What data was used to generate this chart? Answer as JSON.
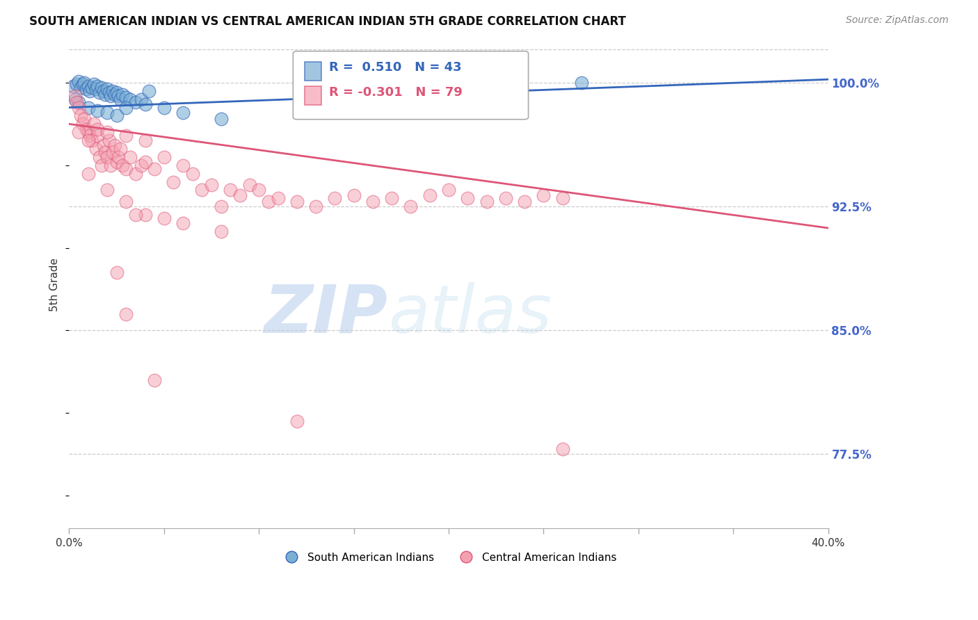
{
  "title": "SOUTH AMERICAN INDIAN VS CENTRAL AMERICAN INDIAN 5TH GRADE CORRELATION CHART",
  "source": "Source: ZipAtlas.com",
  "ylabel": "5th Grade",
  "ylabel_right_ticks": [
    100.0,
    92.5,
    85.0,
    77.5
  ],
  "xlim": [
    0.0,
    40.0
  ],
  "ylim": [
    73.0,
    102.5
  ],
  "legend_blue_label": "South American Indians",
  "legend_pink_label": "Central American Indians",
  "R_blue": 0.51,
  "N_blue": 43,
  "R_pink": -0.301,
  "N_pink": 79,
  "color_blue": "#7BAFD4",
  "color_pink": "#F4A0B0",
  "color_line_blue": "#3366BB",
  "color_line_pink": "#DD5577",
  "color_axis_right": "#4466CC",
  "color_grid": "#CCCCCC",
  "blue_points": [
    [
      0.2,
      99.8
    ],
    [
      0.4,
      99.9
    ],
    [
      0.5,
      100.1
    ],
    [
      0.6,
      99.7
    ],
    [
      0.7,
      99.9
    ],
    [
      0.8,
      100.0
    ],
    [
      0.9,
      99.6
    ],
    [
      1.0,
      99.8
    ],
    [
      1.1,
      99.5
    ],
    [
      1.2,
      99.7
    ],
    [
      1.3,
      99.9
    ],
    [
      1.4,
      99.6
    ],
    [
      1.5,
      99.8
    ],
    [
      1.6,
      99.4
    ],
    [
      1.7,
      99.7
    ],
    [
      1.8,
      99.5
    ],
    [
      1.9,
      99.3
    ],
    [
      2.0,
      99.6
    ],
    [
      2.1,
      99.4
    ],
    [
      2.2,
      99.2
    ],
    [
      2.3,
      99.5
    ],
    [
      2.4,
      99.3
    ],
    [
      2.5,
      99.4
    ],
    [
      2.6,
      99.2
    ],
    [
      2.7,
      99.0
    ],
    [
      2.8,
      99.3
    ],
    [
      3.0,
      99.1
    ],
    [
      3.2,
      99.0
    ],
    [
      3.5,
      98.8
    ],
    [
      3.8,
      99.0
    ],
    [
      4.0,
      98.7
    ],
    [
      4.2,
      99.5
    ],
    [
      5.0,
      98.5
    ],
    [
      0.3,
      99.0
    ],
    [
      0.5,
      98.8
    ],
    [
      1.0,
      98.5
    ],
    [
      1.5,
      98.3
    ],
    [
      2.0,
      98.2
    ],
    [
      2.5,
      98.0
    ],
    [
      3.0,
      98.5
    ],
    [
      6.0,
      98.2
    ],
    [
      8.0,
      97.8
    ],
    [
      27.0,
      100.0
    ]
  ],
  "pink_points": [
    [
      0.3,
      99.2
    ],
    [
      0.4,
      98.8
    ],
    [
      0.5,
      98.5
    ],
    [
      0.6,
      98.0
    ],
    [
      0.7,
      97.5
    ],
    [
      0.8,
      97.8
    ],
    [
      0.9,
      97.2
    ],
    [
      1.0,
      97.0
    ],
    [
      1.1,
      96.8
    ],
    [
      1.2,
      96.5
    ],
    [
      1.3,
      97.5
    ],
    [
      1.4,
      96.0
    ],
    [
      1.5,
      96.8
    ],
    [
      1.6,
      95.5
    ],
    [
      1.7,
      95.0
    ],
    [
      1.8,
      96.2
    ],
    [
      1.9,
      95.8
    ],
    [
      2.0,
      95.5
    ],
    [
      2.1,
      96.5
    ],
    [
      2.2,
      95.0
    ],
    [
      2.3,
      95.8
    ],
    [
      2.4,
      96.2
    ],
    [
      2.5,
      95.2
    ],
    [
      2.6,
      95.5
    ],
    [
      2.7,
      96.0
    ],
    [
      2.8,
      95.0
    ],
    [
      3.0,
      94.8
    ],
    [
      3.2,
      95.5
    ],
    [
      3.5,
      94.5
    ],
    [
      3.8,
      95.0
    ],
    [
      4.0,
      95.2
    ],
    [
      4.5,
      94.8
    ],
    [
      5.0,
      95.5
    ],
    [
      5.5,
      94.0
    ],
    [
      6.0,
      95.0
    ],
    [
      6.5,
      94.5
    ],
    [
      7.0,
      93.5
    ],
    [
      7.5,
      93.8
    ],
    [
      8.0,
      92.5
    ],
    [
      8.5,
      93.5
    ],
    [
      9.0,
      93.2
    ],
    [
      9.5,
      93.8
    ],
    [
      10.0,
      93.5
    ],
    [
      10.5,
      92.8
    ],
    [
      11.0,
      93.0
    ],
    [
      12.0,
      92.8
    ],
    [
      13.0,
      92.5
    ],
    [
      14.0,
      93.0
    ],
    [
      15.0,
      93.2
    ],
    [
      16.0,
      92.8
    ],
    [
      17.0,
      93.0
    ],
    [
      18.0,
      92.5
    ],
    [
      19.0,
      93.2
    ],
    [
      20.0,
      93.5
    ],
    [
      21.0,
      93.0
    ],
    [
      22.0,
      92.8
    ],
    [
      23.0,
      93.0
    ],
    [
      24.0,
      92.8
    ],
    [
      25.0,
      93.2
    ],
    [
      26.0,
      93.0
    ],
    [
      0.5,
      97.0
    ],
    [
      1.0,
      96.5
    ],
    [
      1.5,
      97.2
    ],
    [
      2.0,
      97.0
    ],
    [
      3.0,
      96.8
    ],
    [
      4.0,
      96.5
    ],
    [
      1.0,
      94.5
    ],
    [
      2.0,
      93.5
    ],
    [
      3.0,
      92.8
    ],
    [
      4.0,
      92.0
    ],
    [
      5.0,
      91.8
    ],
    [
      6.0,
      91.5
    ],
    [
      8.0,
      91.0
    ],
    [
      2.5,
      88.5
    ],
    [
      3.0,
      86.0
    ],
    [
      4.5,
      82.0
    ],
    [
      12.0,
      79.5
    ],
    [
      26.0,
      77.8
    ],
    [
      3.5,
      92.0
    ]
  ]
}
